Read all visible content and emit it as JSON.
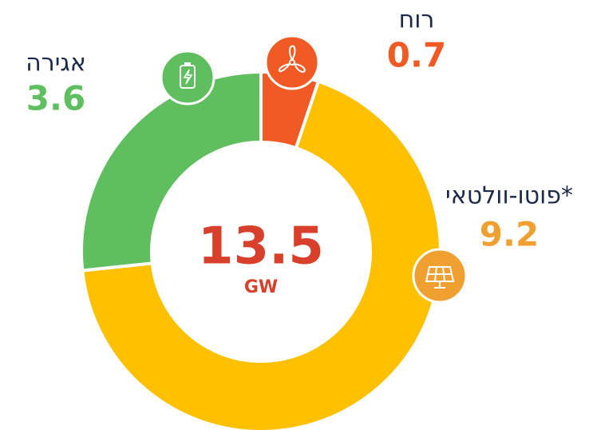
{
  "chart_data": {
    "type": "donut",
    "categories": [
      "רוח",
      "פוטו-וולטאי*",
      "אגירה"
    ],
    "values": [
      0.7,
      9.2,
      3.6
    ],
    "colors": [
      "#f15a24",
      "#ffc000",
      "#5fbf5f"
    ],
    "label_colors": [
      "#f15a24",
      "#f0a030",
      "#5fbf5f"
    ],
    "center_value": 13.5,
    "center_unit": "GW"
  }
}
